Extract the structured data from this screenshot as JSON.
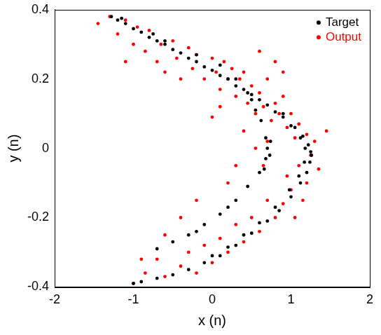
{
  "chart_data": {
    "type": "scatter",
    "x_label": "x (n)",
    "y_label": "y (n)",
    "xlim": [
      -2,
      2
    ],
    "xticks": [
      -2,
      -1,
      0,
      1,
      2
    ],
    "ylim": [
      -0.4,
      0.4
    ],
    "yticks": [
      -0.4,
      -0.2,
      0,
      0.2,
      0.4
    ],
    "grid": false,
    "legend": "upper right",
    "series": [
      {
        "name": "Target",
        "color": "#000000",
        "marker": "circle",
        "values": [
          [
            -1.28,
            0.38
          ],
          [
            -1.1,
            0.36
          ],
          [
            -0.9,
            0.335
          ],
          [
            -0.7,
            0.31
          ],
          [
            -0.5,
            0.285
          ],
          [
            -0.3,
            0.26
          ],
          [
            -0.1,
            0.235
          ],
          [
            0.1,
            0.21
          ],
          [
            0.3,
            0.18
          ],
          [
            0.5,
            0.155
          ],
          [
            0.7,
            0.125
          ],
          [
            0.9,
            0.09
          ],
          [
            1.05,
            0.06
          ],
          [
            1.15,
            0.035
          ],
          [
            1.22,
            0.01
          ],
          [
            1.25,
            -0.01
          ],
          [
            1.24,
            -0.04
          ],
          [
            1.2,
            -0.07
          ],
          [
            1.12,
            -0.1
          ],
          [
            1.0,
            -0.14
          ],
          [
            0.85,
            -0.18
          ],
          [
            0.7,
            -0.21
          ],
          [
            0.5,
            -0.245
          ],
          [
            0.3,
            -0.28
          ],
          [
            0.1,
            -0.31
          ],
          [
            -0.1,
            -0.33
          ],
          [
            -0.3,
            -0.35
          ],
          [
            -0.5,
            -0.365
          ],
          [
            -0.7,
            -0.375
          ],
          [
            -0.9,
            -0.385
          ],
          [
            -1.0,
            -0.39
          ],
          [
            -1.2,
            0.37
          ],
          [
            -1.0,
            0.345
          ],
          [
            -0.8,
            0.32
          ],
          [
            -0.6,
            0.3
          ],
          [
            -0.4,
            0.275
          ],
          [
            -0.2,
            0.25
          ],
          [
            0.0,
            0.225
          ],
          [
            0.2,
            0.2
          ],
          [
            0.4,
            0.17
          ],
          [
            0.6,
            0.14
          ],
          [
            0.8,
            0.105
          ],
          [
            1.0,
            0.065
          ],
          [
            1.12,
            0.03
          ],
          [
            1.18,
            0.0
          ],
          [
            1.17,
            -0.04
          ],
          [
            1.1,
            -0.08
          ],
          [
            0.98,
            -0.12
          ],
          [
            0.8,
            -0.17
          ],
          [
            0.6,
            -0.215
          ],
          [
            0.4,
            -0.25
          ],
          [
            0.2,
            -0.285
          ],
          [
            0.0,
            -0.31
          ],
          [
            -1.15,
            0.375
          ],
          [
            -0.6,
            0.31
          ],
          [
            -0.2,
            0.27
          ],
          [
            0.1,
            0.24
          ],
          [
            0.3,
            0.2
          ],
          [
            0.5,
            0.14
          ],
          [
            0.62,
            0.08
          ],
          [
            0.68,
            0.03
          ],
          [
            0.7,
            0.0
          ],
          [
            0.68,
            -0.03
          ],
          [
            0.6,
            -0.07
          ],
          [
            0.45,
            -0.11
          ],
          [
            0.3,
            -0.15
          ],
          [
            0.1,
            -0.19
          ],
          [
            -0.1,
            -0.22
          ],
          [
            -0.3,
            -0.25
          ],
          [
            -0.5,
            -0.27
          ],
          [
            -0.7,
            -0.29
          ],
          [
            0.74,
            0.02
          ],
          [
            0.73,
            -0.02
          ],
          [
            0.66,
            -0.06
          ],
          [
            0.55,
            0.11
          ],
          [
            0.2,
            -0.17
          ],
          [
            -0.2,
            -0.24
          ],
          [
            -0.75,
            0.33
          ],
          [
            0.45,
            0.16
          ],
          [
            0.9,
            0.1
          ],
          [
            1.26,
            -0.02
          ]
        ]
      },
      {
        "name": "Output",
        "color": "#ff0000",
        "marker": "circle",
        "values": [
          [
            -1.3,
            0.38
          ],
          [
            -1.45,
            0.36
          ],
          [
            -1.2,
            0.33
          ],
          [
            -1.1,
            0.37
          ],
          [
            -1.0,
            0.3
          ],
          [
            -0.95,
            0.35
          ],
          [
            -0.85,
            0.28
          ],
          [
            -0.8,
            0.34
          ],
          [
            -0.7,
            0.25
          ],
          [
            -0.65,
            0.3
          ],
          [
            -0.6,
            0.22
          ],
          [
            -0.5,
            0.31
          ],
          [
            -0.45,
            0.26
          ],
          [
            -0.4,
            0.2
          ],
          [
            -0.3,
            0.29
          ],
          [
            -0.25,
            0.23
          ],
          [
            -0.2,
            0.27
          ],
          [
            -0.1,
            0.2
          ],
          [
            0.0,
            0.26
          ],
          [
            0.05,
            0.22
          ],
          [
            0.1,
            0.17
          ],
          [
            0.15,
            0.25
          ],
          [
            0.2,
            0.2
          ],
          [
            0.25,
            0.23
          ],
          [
            0.3,
            0.15
          ],
          [
            0.35,
            0.2
          ],
          [
            0.4,
            0.22
          ],
          [
            0.45,
            0.13
          ],
          [
            0.5,
            0.18
          ],
          [
            0.55,
            0.1
          ],
          [
            0.6,
            0.16
          ],
          [
            0.65,
            0.12
          ],
          [
            0.7,
            0.2
          ],
          [
            0.75,
            0.08
          ],
          [
            0.8,
            0.13
          ],
          [
            0.85,
            0.1
          ],
          [
            0.9,
            0.15
          ],
          [
            0.95,
            0.06
          ],
          [
            1.0,
            0.1
          ],
          [
            1.05,
            0.03
          ],
          [
            1.1,
            0.07
          ],
          [
            1.2,
            0.04
          ],
          [
            1.3,
            0.02
          ],
          [
            1.45,
            0.05
          ],
          [
            1.25,
            -0.02
          ],
          [
            1.35,
            -0.06
          ],
          [
            1.2,
            -0.1
          ],
          [
            1.1,
            -0.05
          ],
          [
            1.0,
            -0.12
          ],
          [
            0.9,
            -0.16
          ],
          [
            0.95,
            -0.08
          ],
          [
            0.8,
            -0.2
          ],
          [
            0.7,
            -0.15
          ],
          [
            0.6,
            -0.24
          ],
          [
            0.5,
            -0.2
          ],
          [
            0.4,
            -0.27
          ],
          [
            0.3,
            -0.22
          ],
          [
            0.2,
            -0.3
          ],
          [
            0.1,
            -0.26
          ],
          [
            0.0,
            -0.33
          ],
          [
            -0.1,
            -0.28
          ],
          [
            -0.2,
            -0.36
          ],
          [
            -0.3,
            -0.3
          ],
          [
            -0.4,
            -0.34
          ],
          [
            -0.6,
            -0.37
          ],
          [
            -0.7,
            -0.32
          ],
          [
            -0.85,
            -0.36
          ],
          [
            -1.0,
            -0.39
          ],
          [
            -0.9,
            -0.32
          ],
          [
            0.7,
            0.02
          ],
          [
            0.65,
            -0.05
          ],
          [
            0.55,
            0.0
          ],
          [
            0.4,
            0.05
          ],
          [
            0.2,
            -0.1
          ],
          [
            0.0,
            0.09
          ],
          [
            0.3,
            -0.05
          ],
          [
            -0.4,
            -0.2
          ],
          [
            -0.6,
            -0.25
          ],
          [
            0.1,
            0.12
          ],
          [
            0.6,
            0.28
          ],
          [
            0.8,
            0.25
          ],
          [
            0.9,
            0.22
          ],
          [
            -1.1,
            0.25
          ],
          [
            -0.2,
            -0.15
          ],
          [
            1.15,
            -0.15
          ],
          [
            1.05,
            -0.2
          ]
        ]
      }
    ]
  }
}
